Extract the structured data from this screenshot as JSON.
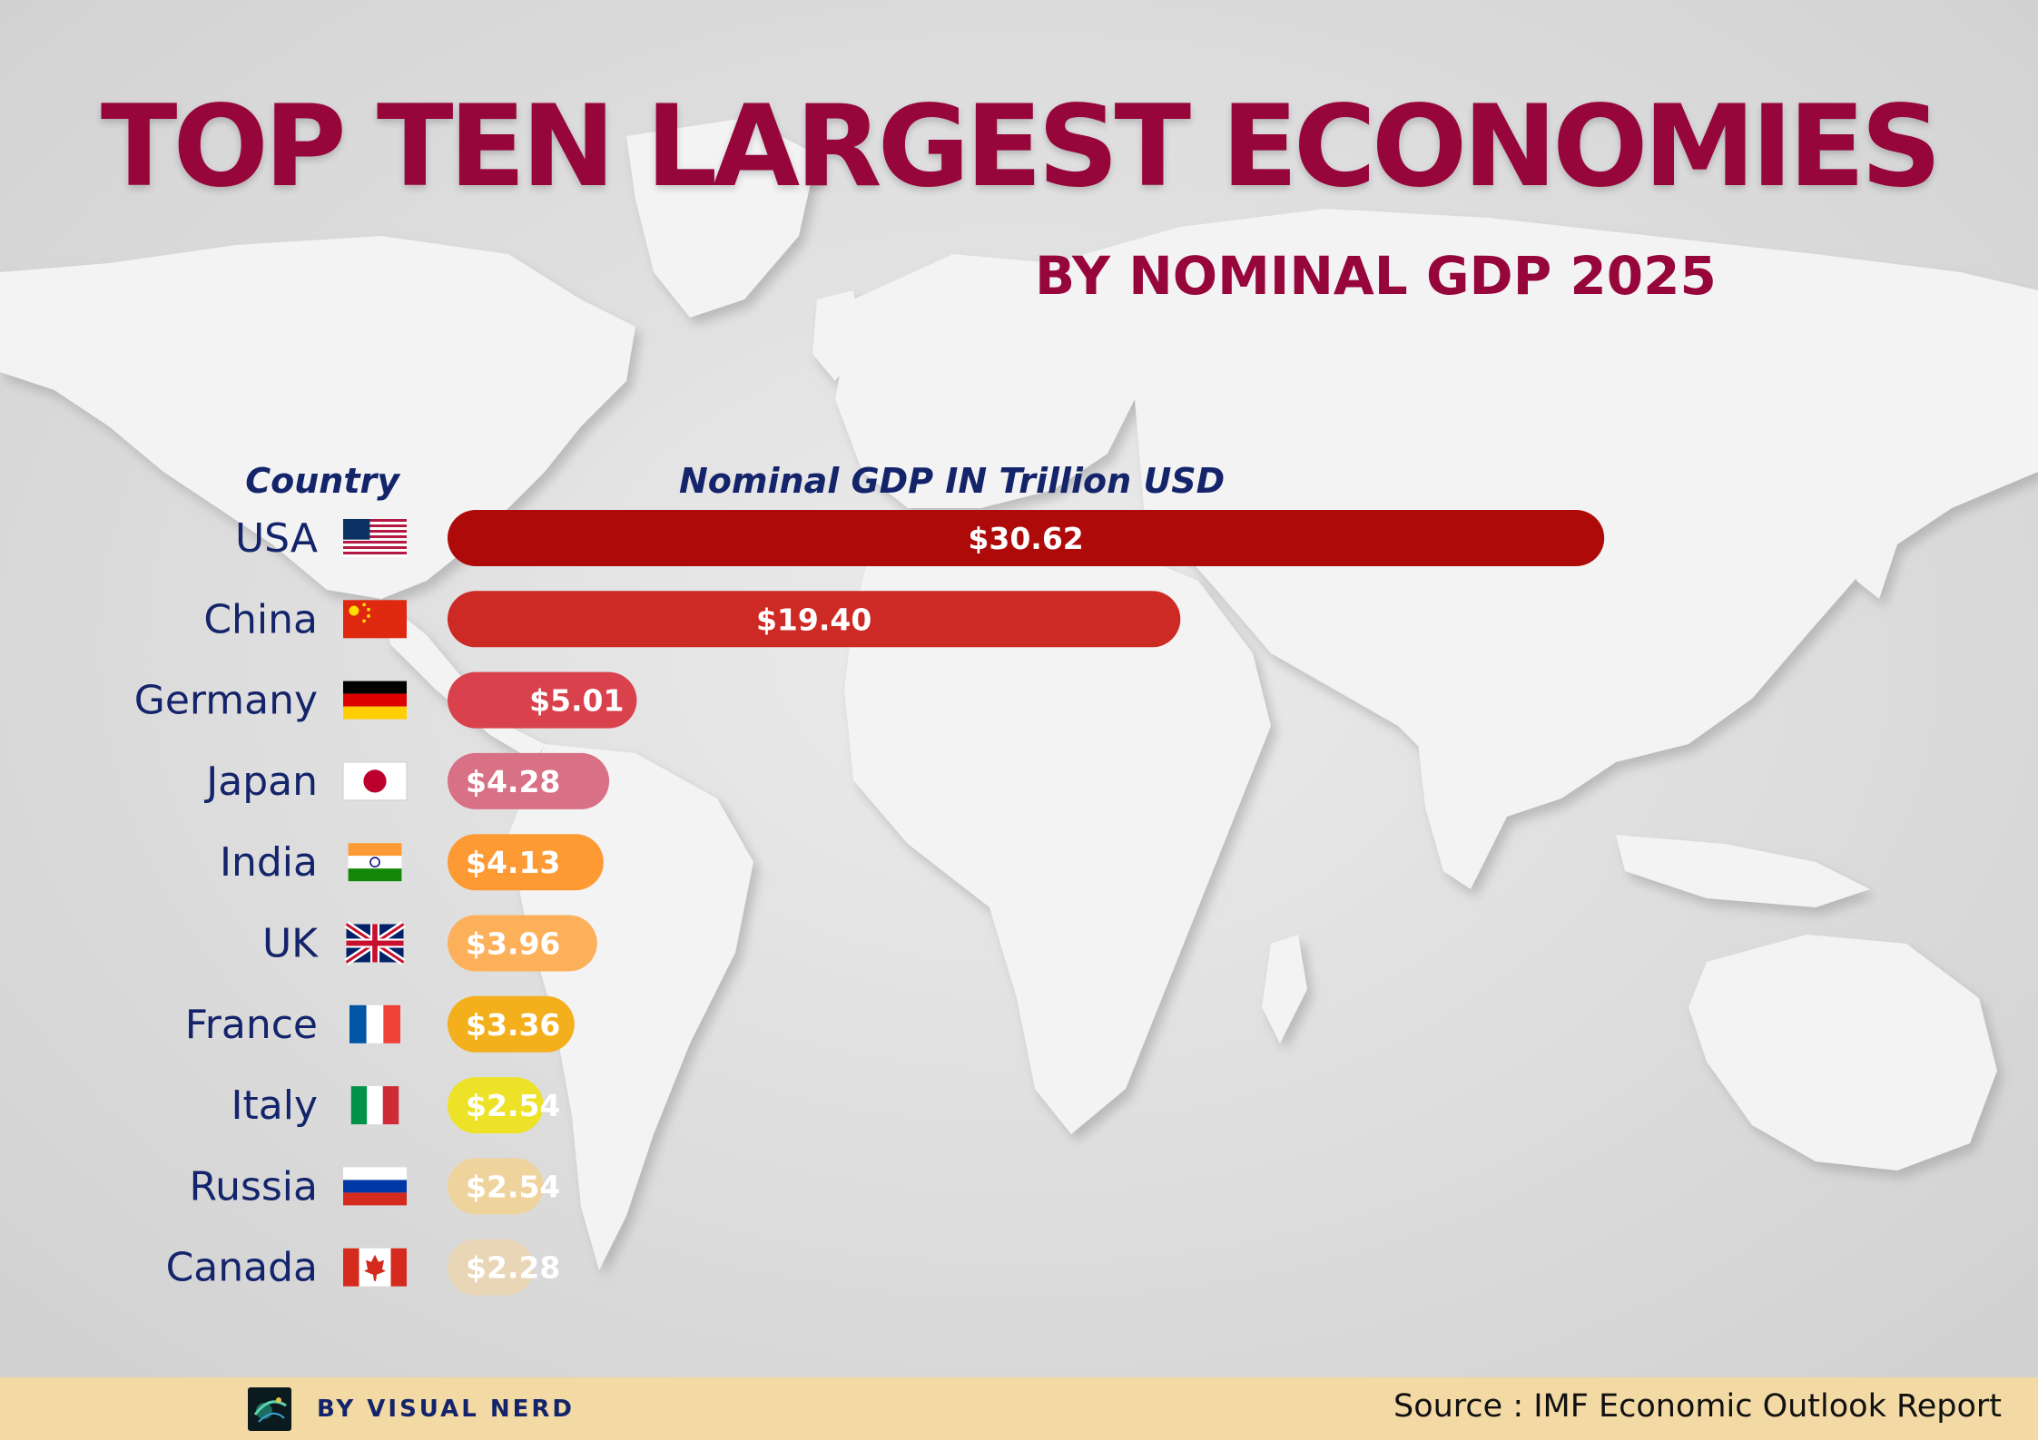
{
  "header": {
    "title": "TOP TEN LARGEST ECONOMIES",
    "subtitle": "BY NOMINAL GDP 2025"
  },
  "colors": {
    "title": "#96063b",
    "labels": "#14246b",
    "footer_bg": "#f3d9a3"
  },
  "chart_data": {
    "type": "bar",
    "orientation": "horizontal",
    "xlabel": "Nominal GDP IN Trillion USD",
    "ylabel": "Country",
    "categories": [
      "USA",
      "China",
      "Germany",
      "Japan",
      "India",
      "UK",
      "France",
      "Italy",
      "Russia",
      "Canada"
    ],
    "values": [
      30.62,
      19.4,
      5.01,
      4.28,
      4.13,
      3.96,
      3.36,
      2.54,
      2.54,
      2.28
    ],
    "value_labels": [
      "$30.62",
      "$19.40",
      "$5.01",
      "$4.28",
      "$4.13",
      "$3.96",
      "$3.36",
      "$2.54",
      "$2.54",
      "$2.28"
    ],
    "bar_colors": [
      "#ae0a0a",
      "#cd2a25",
      "#d9414c",
      "#d87186",
      "#fd9a33",
      "#fdb05a",
      "#f4af1d",
      "#ede228",
      "#efd39d",
      "#e8d6b6"
    ],
    "flags": [
      "usa-flag-icon",
      "china-flag-icon",
      "germany-flag-icon",
      "japan-flag-icon",
      "india-flag-icon",
      "uk-flag-icon",
      "france-flag-icon",
      "italy-flag-icon",
      "russia-flag-icon",
      "canada-flag-icon"
    ],
    "xlim": [
      0,
      31
    ],
    "grid": false,
    "legend": "none"
  },
  "footer": {
    "brand": "BY VISUAL NERD",
    "source": "Source : IMF Economic Outlook Report",
    "logo_icon": "visual-nerd-logo-icon"
  }
}
